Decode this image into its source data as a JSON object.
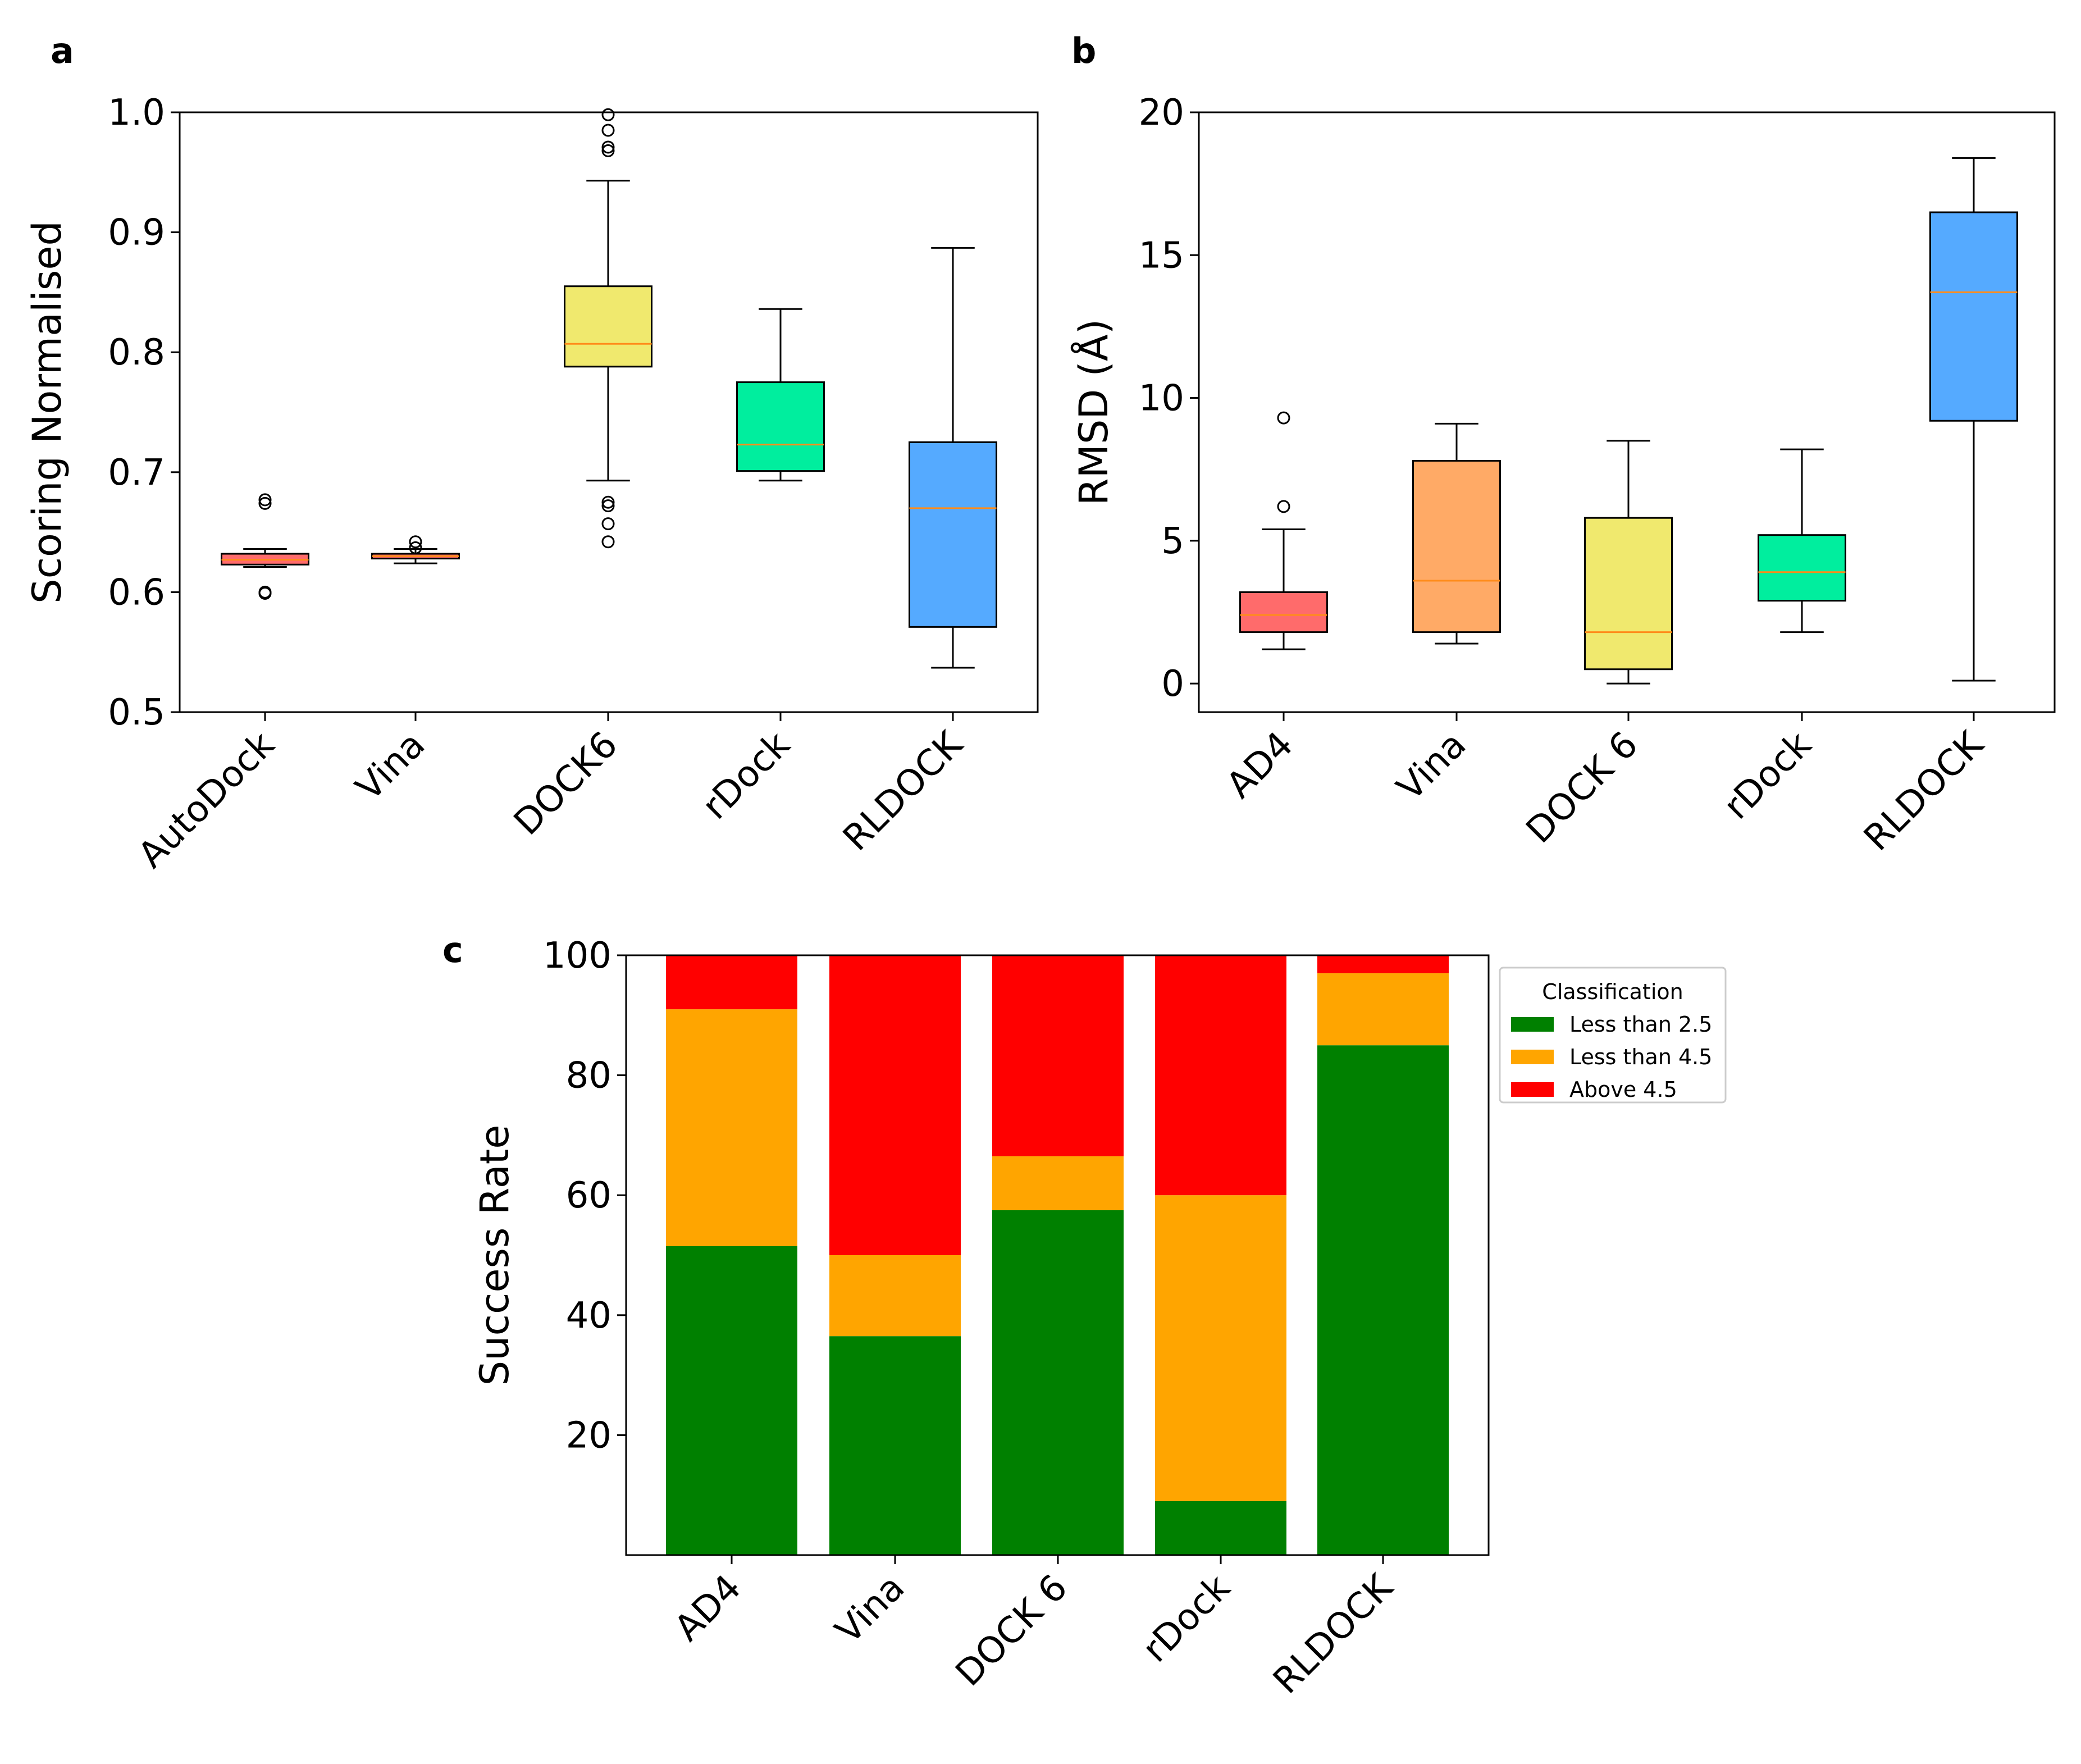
{
  "colors": {
    "autodock": "#ff6b6b",
    "vina": "#ffaa66",
    "dock6": "#f0e96e",
    "rdock": "#00ee9e",
    "rldock": "#55aaff",
    "median": "#ff8c1a",
    "green": "#008000",
    "orange": "#ffa500",
    "red": "#ff0000"
  },
  "chart_data": [
    {
      "panel": "a",
      "type": "box",
      "ylabel": "Scoring Normalised",
      "ylim": [
        0.5,
        1.0
      ],
      "yticks": [
        "0.5",
        "0.6",
        "0.7",
        "0.8",
        "0.9",
        "1.0"
      ],
      "categories": [
        "AutoDock",
        "Vina",
        "DOCK6",
        "rDock",
        "RLDOCK"
      ],
      "boxes": [
        {
          "name": "AutoDock",
          "whisker_low": 0.621,
          "q1": 0.623,
          "median": 0.627,
          "q3": 0.632,
          "whisker_high": 0.636,
          "outliers": [
            0.599,
            0.6,
            0.674,
            0.677
          ],
          "color_key": "autodock"
        },
        {
          "name": "Vina",
          "whisker_low": 0.624,
          "q1": 0.628,
          "median": 0.63,
          "q3": 0.632,
          "whisker_high": 0.636,
          "outliers": [
            0.637,
            0.642
          ],
          "color_key": "autodock"
        },
        {
          "name": "DOCK6",
          "whisker_low": 0.693,
          "q1": 0.788,
          "median": 0.807,
          "q3": 0.855,
          "whisker_high": 0.943,
          "outliers": [
            0.642,
            0.657,
            0.672,
            0.675,
            0.968,
            0.971,
            0.985,
            0.998
          ],
          "color_key": "dock6"
        },
        {
          "name": "rDock",
          "whisker_low": 0.693,
          "q1": 0.701,
          "median": 0.723,
          "q3": 0.775,
          "whisker_high": 0.836,
          "outliers": [],
          "color_key": "rdock"
        },
        {
          "name": "RLDOCK",
          "whisker_low": 0.537,
          "q1": 0.571,
          "median": 0.67,
          "q3": 0.725,
          "whisker_high": 0.887,
          "outliers": [],
          "color_key": "rldock"
        }
      ]
    },
    {
      "panel": "b",
      "type": "box",
      "ylabel": "RMSD (Å)",
      "ylim": [
        -1,
        20
      ],
      "yticks": [
        "0",
        "5",
        "10",
        "15",
        "20"
      ],
      "categories": [
        "AD4",
        "Vina",
        "DOCK 6",
        "rDock",
        "RLDOCK"
      ],
      "boxes": [
        {
          "name": "AD4",
          "whisker_low": 1.2,
          "q1": 1.8,
          "median": 2.4,
          "q3": 3.2,
          "whisker_high": 5.4,
          "outliers": [
            6.2,
            9.3
          ],
          "color_key": "autodock"
        },
        {
          "name": "Vina",
          "whisker_low": 1.4,
          "q1": 1.8,
          "median": 3.6,
          "q3": 7.8,
          "whisker_high": 9.1,
          "outliers": [],
          "color_key": "vina"
        },
        {
          "name": "DOCK 6",
          "whisker_low": 0.0,
          "q1": 0.5,
          "median": 1.8,
          "q3": 5.8,
          "whisker_high": 8.5,
          "outliers": [],
          "color_key": "dock6"
        },
        {
          "name": "rDock",
          "whisker_low": 1.8,
          "q1": 2.9,
          "median": 3.9,
          "q3": 5.2,
          "whisker_high": 8.2,
          "outliers": [],
          "color_key": "rdock"
        },
        {
          "name": "RLDOCK",
          "whisker_low": 0.1,
          "q1": 9.2,
          "median": 13.7,
          "q3": 16.5,
          "whisker_high": 18.4,
          "outliers": [],
          "color_key": "rldock"
        }
      ]
    },
    {
      "panel": "c",
      "type": "bar",
      "stacked": true,
      "ylabel": "Success Rate",
      "ylim": [
        0,
        100
      ],
      "yticks": [
        "20",
        "40",
        "60",
        "80",
        "100"
      ],
      "categories": [
        "AD4",
        "Vina",
        "DOCK 6",
        "rDock",
        "RLDOCK"
      ],
      "series": [
        {
          "name": "Less than 2.5",
          "values": [
            51.5,
            36.5,
            57.5,
            9.0,
            85.0
          ],
          "color_key": "green"
        },
        {
          "name": "Less than 4.5",
          "values": [
            39.5,
            13.5,
            9.0,
            51.0,
            12.0
          ],
          "color_key": "orange"
        },
        {
          "name": "Above 4.5",
          "values": [
            9.0,
            50.0,
            33.5,
            40.0,
            3.0
          ],
          "color_key": "red"
        }
      ],
      "legend": {
        "title": "Classification",
        "position": "outside-right"
      }
    }
  ]
}
